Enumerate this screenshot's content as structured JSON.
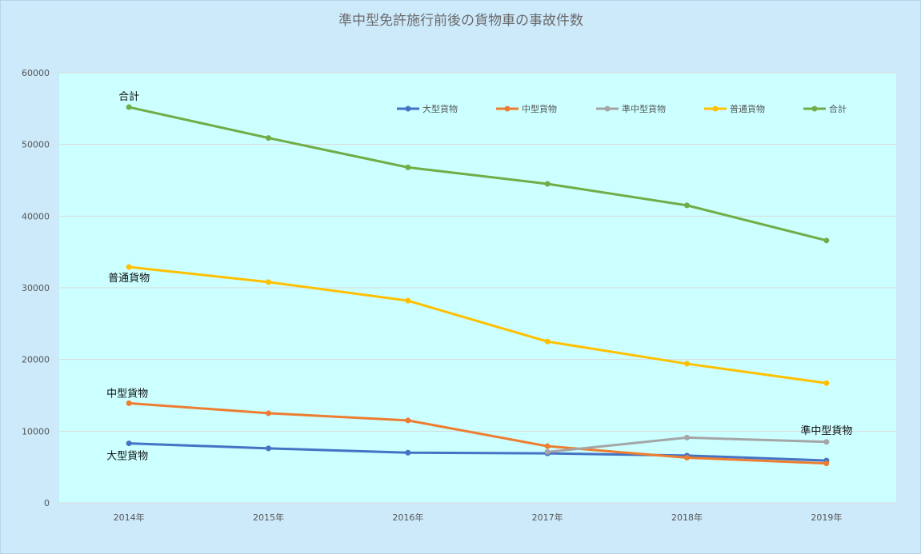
{
  "chart_data": {
    "type": "line",
    "title": "準中型免許施行前後の貨物車の事故件数",
    "xlabel": "",
    "ylabel": "",
    "categories": [
      "2014年",
      "2015年",
      "2016年",
      "2017年",
      "2018年",
      "2019年"
    ],
    "ylim": [
      0,
      60000
    ],
    "yticks": [
      0,
      10000,
      20000,
      30000,
      40000,
      50000,
      60000
    ],
    "grid": true,
    "legend_position": "top-right inside plot",
    "series": [
      {
        "name": "大型貨物",
        "color": "#4472c4",
        "values": [
          8300,
          7600,
          7000,
          6900,
          6600,
          5900
        ]
      },
      {
        "name": "中型貨物",
        "color": "#ed7d31",
        "values": [
          13900,
          12500,
          11500,
          7900,
          6300,
          5500
        ]
      },
      {
        "name": "準中型貨物",
        "color": "#a5a5a5",
        "values": [
          null,
          null,
          null,
          7100,
          9100,
          8500
        ]
      },
      {
        "name": "普通貨物",
        "color": "#ffc000",
        "values": [
          32900,
          30800,
          28200,
          22500,
          19400,
          16700
        ]
      },
      {
        "name": "合計",
        "color": "#70ad47",
        "values": [
          55200,
          50900,
          46800,
          44500,
          41500,
          36600
        ]
      }
    ],
    "annotations": [
      {
        "text": "合計",
        "series": "合計",
        "at": "2014年"
      },
      {
        "text": "普通貨物",
        "series": "普通貨物",
        "at": "2014年"
      },
      {
        "text": "中型貨物",
        "series": "中型貨物",
        "at": "2014年"
      },
      {
        "text": "大型貨物",
        "series": "大型貨物",
        "at": "2014年"
      },
      {
        "text": "準中型貨物",
        "series": "準中型貨物",
        "at": "2019年"
      }
    ],
    "colors": {
      "page_background": "#cdeafb",
      "plot_background": "#ccffff",
      "gridline": "#d9d9d9"
    }
  }
}
